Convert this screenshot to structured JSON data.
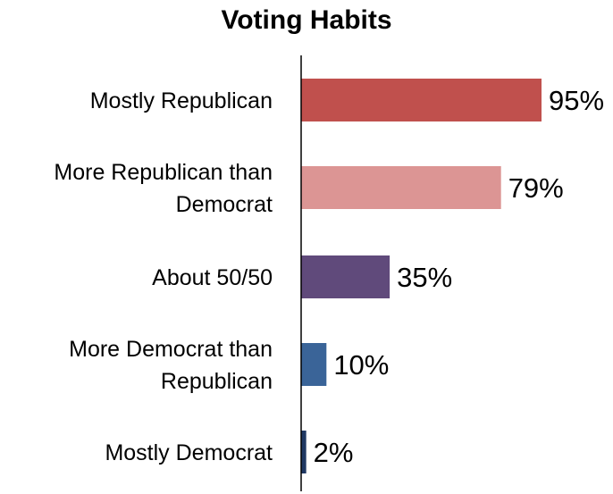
{
  "chart_data": {
    "type": "bar",
    "orientation": "horizontal",
    "title": "Voting Habits",
    "xlabel": "",
    "ylabel": "",
    "xlim": [
      0,
      100
    ],
    "grid": false,
    "legend": "none",
    "categories": [
      "Mostly Republican",
      "More Republican than Democrat",
      "About 50/50",
      "More Democrat than Republican",
      "Mostly Democrat"
    ],
    "category_lines": [
      [
        "Mostly Republican"
      ],
      [
        "More Republican than",
        "Democrat"
      ],
      [
        "About 50/50"
      ],
      [
        "More Democrat than",
        "Republican"
      ],
      [
        "Mostly Democrat"
      ]
    ],
    "values": [
      95,
      79,
      35,
      10,
      2
    ],
    "value_labels": [
      "95%",
      "79%",
      "35%",
      "10%",
      "2%"
    ],
    "colors": [
      "#c0504d",
      "#dc9594",
      "#604a7b",
      "#3a6498",
      "#1f3863"
    ]
  }
}
